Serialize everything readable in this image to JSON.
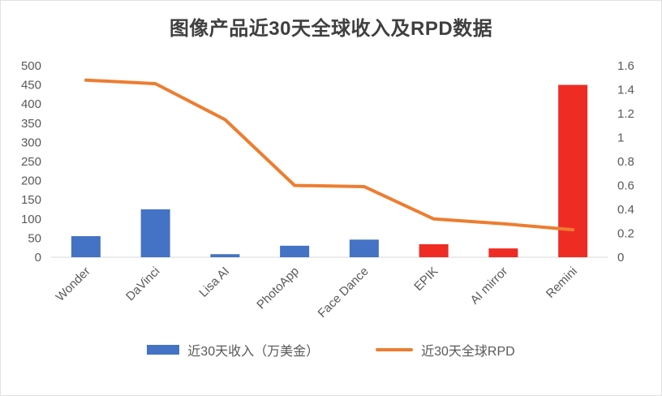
{
  "chart": {
    "title": "图像产品近30天全球收入及RPD数据"
  },
  "chart_data": {
    "type": "bar+line",
    "title": "图像产品近30天全球收入及RPD数据",
    "categories": [
      "Wonder",
      "DaVinci",
      "Lisa AI",
      "PhotoApp",
      "Face Dance",
      "EPIK",
      "AI mirror",
      "Remini"
    ],
    "series": [
      {
        "name": "近30天收入（万美金）",
        "type": "bar",
        "axis": "left",
        "values": [
          55,
          125,
          8,
          30,
          46,
          34,
          23,
          450
        ],
        "colors": [
          "#4472C4",
          "#4472C4",
          "#4472C4",
          "#4472C4",
          "#4472C4",
          "#EE2C24",
          "#EE2C24",
          "#EE2C24"
        ],
        "legend_color": "#4472C4"
      },
      {
        "name": "近30天全球RPD",
        "type": "line",
        "axis": "right",
        "values": [
          1.48,
          1.45,
          1.15,
          0.6,
          0.59,
          0.32,
          0.28,
          0.23
        ],
        "color": "#ED7D31"
      }
    ],
    "left_axis": {
      "min": 0,
      "max": 500,
      "step": 50
    },
    "right_axis": {
      "min": 0,
      "max": 1.6,
      "step": 0.2
    },
    "legend_position": "bottom",
    "grid": false,
    "x_label_rotation": -45,
    "axis_text_color": "#595959",
    "axis_line_color": "#d9d9d9"
  }
}
